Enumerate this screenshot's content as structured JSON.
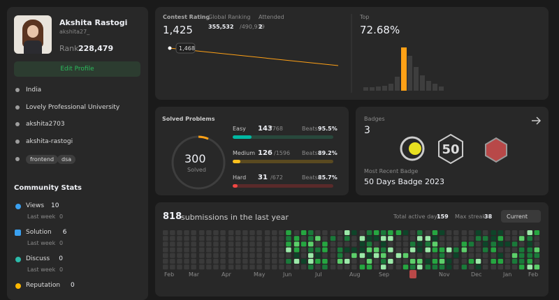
{
  "profile": {
    "name": "Akshita Rastogi",
    "username": "akshita27_",
    "rank_label": "Rank",
    "rank": "228,479",
    "edit_button": "Edit Profile",
    "location": "India",
    "university": "Lovely Professional University",
    "github": "akshita2703",
    "linkedin": "akshita-rastogi",
    "tags": [
      "frontend",
      "dsa"
    ]
  },
  "community": {
    "title": "Community Stats",
    "items": [
      {
        "label": "Views",
        "value": 10,
        "sub": "Last week",
        "sub_value": 0
      },
      {
        "label": "Solution",
        "value": 6,
        "sub": "Last week",
        "sub_value": 0
      },
      {
        "label": "Discuss",
        "value": 0,
        "sub": "Last week",
        "sub_value": 0
      },
      {
        "label": "Reputation",
        "value": 0
      }
    ]
  },
  "contest": {
    "rating_label": "Contest Rating",
    "rating": "1,425",
    "ranking_label": "Global Ranking",
    "ranking": "355,532",
    "ranking_total": "/490,939",
    "attended_label": "Attended",
    "attended": 2,
    "tooltip": "1,468",
    "top_label": "Top",
    "top": "72.68%"
  },
  "solved": {
    "title": "Solved Problems",
    "total": 300,
    "total_label": "Solved",
    "beats_label": "Beats",
    "levels": [
      {
        "name": "Easy",
        "solved": 143,
        "total": "/768",
        "beats": "95.5%"
      },
      {
        "name": "Medium",
        "solved": 126,
        "total": "/1596",
        "beats": "89.2%"
      },
      {
        "name": "Hard",
        "solved": 31,
        "total": "/672",
        "beats": "85.7%"
      }
    ]
  },
  "badges": {
    "title": "Badges",
    "count": 3,
    "recent_label": "Most Recent Badge",
    "recent": "50 Days Badge 2023"
  },
  "submissions": {
    "count": 818,
    "label": "submissions in the last year",
    "active_label": "Total active days:",
    "active": 159,
    "streak_label": "Max streak:",
    "streak": 38,
    "dropdown": "Current",
    "months": [
      "Feb",
      "Mar",
      "Apr",
      "May",
      "Jun",
      "Jul",
      "Aug",
      "Sep",
      "Nov",
      "Dec",
      "Jan",
      "Feb"
    ]
  }
}
